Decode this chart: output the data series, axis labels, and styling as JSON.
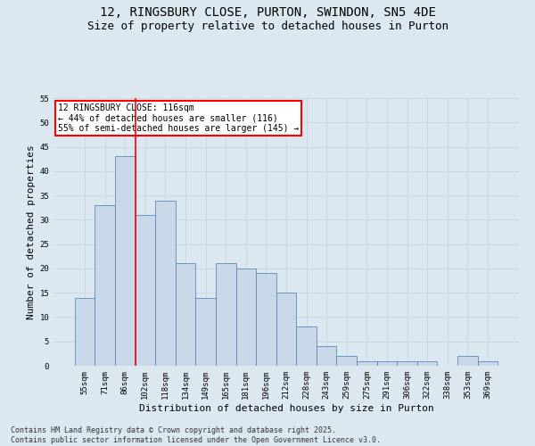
{
  "title_line1": "12, RINGSBURY CLOSE, PURTON, SWINDON, SN5 4DE",
  "title_line2": "Size of property relative to detached houses in Purton",
  "xlabel": "Distribution of detached houses by size in Purton",
  "ylabel": "Number of detached properties",
  "categories": [
    "55sqm",
    "71sqm",
    "86sqm",
    "102sqm",
    "118sqm",
    "134sqm",
    "149sqm",
    "165sqm",
    "181sqm",
    "196sqm",
    "212sqm",
    "228sqm",
    "243sqm",
    "259sqm",
    "275sqm",
    "291sqm",
    "306sqm",
    "322sqm",
    "338sqm",
    "353sqm",
    "369sqm"
  ],
  "values": [
    14,
    33,
    43,
    31,
    34,
    21,
    14,
    21,
    20,
    19,
    15,
    8,
    4,
    2,
    1,
    1,
    1,
    1,
    0,
    2,
    1
  ],
  "bar_color": "#c8d8e8",
  "bar_edge_color": "#5a8ab8",
  "bar_linewidth": 0.6,
  "vline_color": "red",
  "vline_linewidth": 1.2,
  "vline_pos": 2.5,
  "annotation_text": "12 RINGSBURY CLOSE: 116sqm\n← 44% of detached houses are smaller (116)\n55% of semi-detached houses are larger (145) →",
  "annotation_box_color": "white",
  "annotation_border_color": "red",
  "ylim": [
    0,
    55
  ],
  "yticks": [
    0,
    5,
    10,
    15,
    20,
    25,
    30,
    35,
    40,
    45,
    50,
    55
  ],
  "grid_color": "#c8d4e8",
  "bg_color": "#dce8f0",
  "footer_line1": "Contains HM Land Registry data © Crown copyright and database right 2025.",
  "footer_line2": "Contains public sector information licensed under the Open Government Licence v3.0.",
  "title_fontsize": 10,
  "subtitle_fontsize": 9,
  "tick_fontsize": 6.5,
  "ylabel_fontsize": 8,
  "xlabel_fontsize": 8,
  "footer_fontsize": 6,
  "annotation_fontsize": 7
}
